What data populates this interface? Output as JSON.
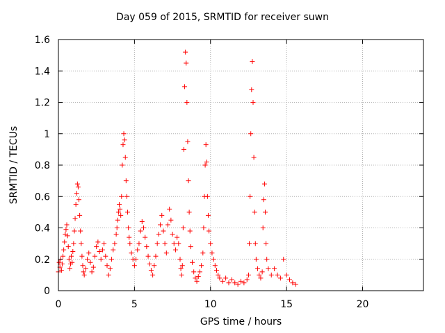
{
  "chart_data": {
    "type": "scatter",
    "title": "Day 059 of 2015, SRMTID for receiver suwn",
    "xlabel": "GPS time / hours",
    "ylabel": "SRMTID / TECUs",
    "xlim": [
      0,
      24
    ],
    "ylim": [
      0,
      1.6
    ],
    "xticks": [
      0,
      5,
      10,
      15,
      20
    ],
    "xtick_labels": [
      "0",
      "5",
      "10",
      "15",
      "20"
    ],
    "yticks": [
      0,
      0.2,
      0.4,
      0.6,
      0.8,
      1,
      1.2,
      1.4,
      1.6
    ],
    "ytick_labels": [
      "0",
      "0.2",
      "0.4",
      "0.6",
      "0.8",
      "1",
      "1.2",
      "1.4",
      "1.6"
    ],
    "grid": true,
    "marker": "+",
    "marker_color": "#ff0000",
    "series": [
      {
        "name": "suwn",
        "points": [
          [
            0.0,
            0.12
          ],
          [
            0.05,
            0.18
          ],
          [
            0.1,
            0.15
          ],
          [
            0.15,
            0.2
          ],
          [
            0.2,
            0.13
          ],
          [
            0.25,
            0.17
          ],
          [
            0.3,
            0.22
          ],
          [
            0.35,
            0.26
          ],
          [
            0.4,
            0.31
          ],
          [
            0.45,
            0.36
          ],
          [
            0.5,
            0.39
          ],
          [
            0.55,
            0.42
          ],
          [
            0.6,
            0.35
          ],
          [
            0.65,
            0.28
          ],
          [
            0.7,
            0.2
          ],
          [
            0.75,
            0.14
          ],
          [
            0.8,
            0.17
          ],
          [
            0.85,
            0.22
          ],
          [
            0.9,
            0.18
          ],
          [
            0.95,
            0.25
          ],
          [
            1.0,
            0.3
          ],
          [
            1.05,
            0.38
          ],
          [
            1.1,
            0.46
          ],
          [
            1.15,
            0.55
          ],
          [
            1.2,
            0.62
          ],
          [
            1.25,
            0.68
          ],
          [
            1.3,
            0.66
          ],
          [
            1.35,
            0.58
          ],
          [
            1.4,
            0.48
          ],
          [
            1.45,
            0.38
          ],
          [
            1.5,
            0.3
          ],
          [
            1.55,
            0.22
          ],
          [
            1.6,
            0.16
          ],
          [
            1.65,
            0.12
          ],
          [
            1.7,
            0.1
          ],
          [
            1.8,
            0.14
          ],
          [
            1.9,
            0.2
          ],
          [
            2.0,
            0.24
          ],
          [
            2.1,
            0.18
          ],
          [
            2.2,
            0.12
          ],
          [
            2.3,
            0.15
          ],
          [
            2.4,
            0.22
          ],
          [
            2.5,
            0.28
          ],
          [
            2.6,
            0.31
          ],
          [
            2.7,
            0.25
          ],
          [
            2.8,
            0.2
          ],
          [
            2.9,
            0.26
          ],
          [
            3.0,
            0.3
          ],
          [
            3.1,
            0.22
          ],
          [
            3.2,
            0.16
          ],
          [
            3.3,
            0.1
          ],
          [
            3.4,
            0.14
          ],
          [
            3.5,
            0.2
          ],
          [
            3.6,
            0.26
          ],
          [
            3.7,
            0.3
          ],
          [
            3.8,
            0.36
          ],
          [
            3.85,
            0.4
          ],
          [
            3.9,
            0.45
          ],
          [
            3.95,
            0.5
          ],
          [
            4.0,
            0.55
          ],
          [
            4.05,
            0.52
          ],
          [
            4.1,
            0.48
          ],
          [
            4.15,
            0.6
          ],
          [
            4.2,
            0.8
          ],
          [
            4.25,
            0.93
          ],
          [
            4.3,
            1.0
          ],
          [
            4.35,
            0.96
          ],
          [
            4.4,
            0.85
          ],
          [
            4.45,
            0.7
          ],
          [
            4.5,
            0.6
          ],
          [
            4.55,
            0.5
          ],
          [
            4.6,
            0.4
          ],
          [
            4.65,
            0.34
          ],
          [
            4.7,
            0.3
          ],
          [
            4.8,
            0.24
          ],
          [
            4.9,
            0.2
          ],
          [
            5.0,
            0.16
          ],
          [
            5.1,
            0.2
          ],
          [
            5.2,
            0.26
          ],
          [
            5.3,
            0.3
          ],
          [
            5.4,
            0.38
          ],
          [
            5.5,
            0.44
          ],
          [
            5.6,
            0.4
          ],
          [
            5.7,
            0.34
          ],
          [
            5.8,
            0.28
          ],
          [
            5.9,
            0.22
          ],
          [
            6.0,
            0.17
          ],
          [
            6.1,
            0.13
          ],
          [
            6.2,
            0.1
          ],
          [
            6.3,
            0.16
          ],
          [
            6.4,
            0.22
          ],
          [
            6.5,
            0.3
          ],
          [
            6.6,
            0.36
          ],
          [
            6.7,
            0.42
          ],
          [
            6.8,
            0.48
          ],
          [
            6.9,
            0.38
          ],
          [
            7.0,
            0.3
          ],
          [
            7.1,
            0.24
          ],
          [
            7.2,
            0.42
          ],
          [
            7.3,
            0.52
          ],
          [
            7.4,
            0.45
          ],
          [
            7.5,
            0.36
          ],
          [
            7.6,
            0.3
          ],
          [
            7.7,
            0.26
          ],
          [
            7.8,
            0.34
          ],
          [
            7.9,
            0.3
          ],
          [
            8.0,
            0.2
          ],
          [
            8.05,
            0.14
          ],
          [
            8.1,
            0.1
          ],
          [
            8.15,
            0.16
          ],
          [
            8.2,
            0.4
          ],
          [
            8.25,
            0.9
          ],
          [
            8.3,
            1.3
          ],
          [
            8.35,
            1.52
          ],
          [
            8.4,
            1.45
          ],
          [
            8.45,
            1.2
          ],
          [
            8.5,
            0.95
          ],
          [
            8.55,
            0.7
          ],
          [
            8.6,
            0.5
          ],
          [
            8.65,
            0.38
          ],
          [
            8.7,
            0.28
          ],
          [
            8.8,
            0.18
          ],
          [
            8.9,
            0.12
          ],
          [
            9.0,
            0.08
          ],
          [
            9.1,
            0.06
          ],
          [
            9.2,
            0.09
          ],
          [
            9.3,
            0.12
          ],
          [
            9.4,
            0.16
          ],
          [
            9.5,
            0.24
          ],
          [
            9.55,
            0.4
          ],
          [
            9.6,
            0.6
          ],
          [
            9.65,
            0.8
          ],
          [
            9.7,
            0.93
          ],
          [
            9.75,
            0.82
          ],
          [
            9.8,
            0.6
          ],
          [
            9.85,
            0.48
          ],
          [
            9.9,
            0.38
          ],
          [
            10.0,
            0.3
          ],
          [
            10.1,
            0.24
          ],
          [
            10.2,
            0.2
          ],
          [
            10.3,
            0.16
          ],
          [
            10.4,
            0.13
          ],
          [
            10.5,
            0.1
          ],
          [
            10.6,
            0.08
          ],
          [
            10.8,
            0.06
          ],
          [
            11.0,
            0.08
          ],
          [
            11.2,
            0.05
          ],
          [
            11.4,
            0.07
          ],
          [
            11.6,
            0.05
          ],
          [
            11.8,
            0.04
          ],
          [
            12.0,
            0.06
          ],
          [
            12.2,
            0.05
          ],
          [
            12.4,
            0.07
          ],
          [
            12.5,
            0.1
          ],
          [
            12.55,
            0.3
          ],
          [
            12.6,
            0.6
          ],
          [
            12.65,
            1.0
          ],
          [
            12.7,
            1.28
          ],
          [
            12.75,
            1.46
          ],
          [
            12.8,
            1.2
          ],
          [
            12.85,
            0.85
          ],
          [
            12.9,
            0.5
          ],
          [
            12.95,
            0.3
          ],
          [
            13.0,
            0.2
          ],
          [
            13.1,
            0.14
          ],
          [
            13.2,
            0.1
          ],
          [
            13.3,
            0.08
          ],
          [
            13.4,
            0.12
          ],
          [
            13.45,
            0.4
          ],
          [
            13.5,
            0.58
          ],
          [
            13.55,
            0.68
          ],
          [
            13.6,
            0.5
          ],
          [
            13.65,
            0.3
          ],
          [
            13.7,
            0.2
          ],
          [
            13.8,
            0.14
          ],
          [
            14.0,
            0.1
          ],
          [
            14.2,
            0.14
          ],
          [
            14.4,
            0.1
          ],
          [
            14.6,
            0.08
          ],
          [
            14.8,
            0.2
          ],
          [
            15.0,
            0.1
          ],
          [
            15.2,
            0.07
          ],
          [
            15.4,
            0.05
          ],
          [
            15.6,
            0.04
          ]
        ]
      }
    ]
  }
}
